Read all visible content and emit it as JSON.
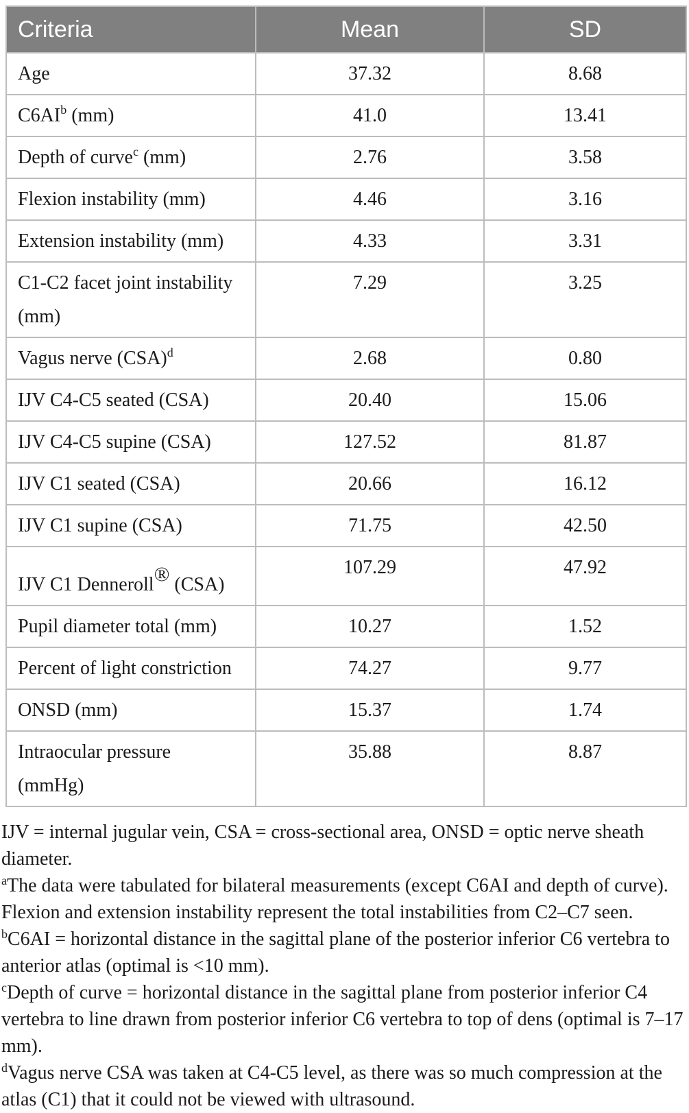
{
  "colors": {
    "header_bg": "#808080",
    "header_text": "#ffffff",
    "border": "#bcbcbc",
    "text": "#1b1b1b"
  },
  "table": {
    "columns": [
      {
        "key": "criteria",
        "label": "Criteria"
      },
      {
        "key": "mean",
        "label": "Mean"
      },
      {
        "key": "sd",
        "label": "SD"
      }
    ],
    "rows": [
      {
        "pre": "Age",
        "sup": "",
        "post": "",
        "mean": "37.32",
        "sd": "8.68",
        "tall": false
      },
      {
        "pre": "C6AI",
        "sup": "b",
        "post": " (mm)",
        "mean": "41.0",
        "sd": "13.41",
        "tall": false
      },
      {
        "pre": "Depth of curve",
        "sup": "c",
        "post": " (mm)",
        "mean": "2.76",
        "sd": "3.58",
        "tall": false
      },
      {
        "pre": "Flexion instability (mm)",
        "sup": "",
        "post": "",
        "mean": "4.46",
        "sd": "3.16",
        "tall": false
      },
      {
        "pre": "Extension instability (mm)",
        "sup": "",
        "post": "",
        "mean": "4.33",
        "sd": "3.31",
        "tall": false
      },
      {
        "pre": "C1-C2 facet joint instability\n(mm)",
        "sup": "",
        "post": "",
        "mean": "7.29",
        "sd": "3.25",
        "tall": false
      },
      {
        "pre": "Vagus nerve (CSA)",
        "sup": "d",
        "post": "",
        "mean": "2.68",
        "sd": "0.80",
        "tall": false
      },
      {
        "pre": "IJV C4-C5 seated (CSA)",
        "sup": "",
        "post": "",
        "mean": "20.40",
        "sd": "15.06",
        "tall": false
      },
      {
        "pre": "IJV C4-C5 supine (CSA)",
        "sup": "",
        "post": "",
        "mean": "127.52",
        "sd": "81.87",
        "tall": false
      },
      {
        "pre": "IJV C1 seated (CSA)",
        "sup": "",
        "post": "",
        "mean": "20.66",
        "sd": "16.12",
        "tall": false
      },
      {
        "pre": "IJV C1 supine (CSA)",
        "sup": "",
        "post": "",
        "mean": "71.75",
        "sd": "42.50",
        "tall": false
      },
      {
        "pre": "IJV C1 Denneroll",
        "sup": "®",
        "post": " (CSA)",
        "mean": "107.29",
        "sd": "47.92",
        "tall": true
      },
      {
        "pre": "Pupil diameter total (mm)",
        "sup": "",
        "post": "",
        "mean": "10.27",
        "sd": "1.52",
        "tall": false
      },
      {
        "pre": "Percent of light constriction",
        "sup": "",
        "post": "",
        "mean": "74.27",
        "sd": "9.77",
        "tall": false
      },
      {
        "pre": "ONSD (mm)",
        "sup": "",
        "post": "",
        "mean": "15.37",
        "sd": "1.74",
        "tall": false
      },
      {
        "pre": "Intraocular pressure\n(mmHg)",
        "sup": "",
        "post": "",
        "mean": "35.88",
        "sd": "8.87",
        "tall": false
      }
    ]
  },
  "footnotes": [
    {
      "sup": "",
      "text": "IJV = internal jugular vein, CSA = cross-sectional area, ONSD = optic nerve sheath diameter."
    },
    {
      "sup": "a",
      "text": "The data were tabulated for bilateral measurements (except C6AI and depth of curve). Flexion and extension instability represent the total instabilities from C2–C7 seen."
    },
    {
      "sup": "b",
      "text": "C6AI = horizontal distance in the sagittal plane of the posterior inferior C6 vertebra to anterior atlas (optimal is <10 mm)."
    },
    {
      "sup": "c",
      "text": "Depth of curve = horizontal distance in the sagittal plane from posterior inferior C4 vertebra to line drawn from posterior inferior C6 vertebra to top of dens (optimal is 7–17 mm)."
    },
    {
      "sup": "d",
      "text": "Vagus nerve CSA was taken at C4-C5 level, as there was so much compression at the atlas (C1) that it could not be viewed with ultrasound."
    }
  ]
}
